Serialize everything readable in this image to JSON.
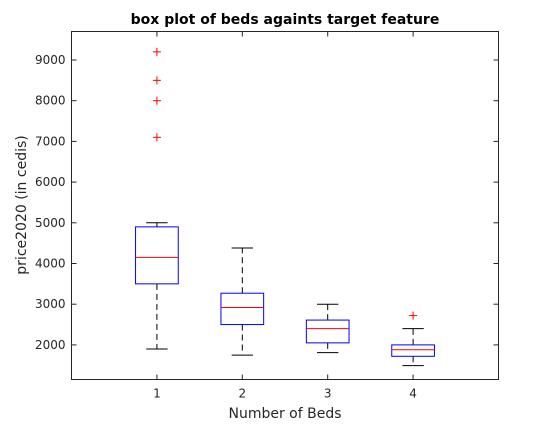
{
  "chart_data": {
    "type": "box",
    "title": "box plot of beds againts target feature",
    "xlabel": "Number of Beds",
    "ylabel": "price2020 (in cedis)",
    "categories": [
      "1",
      "2",
      "3",
      "4"
    ],
    "ylim": [
      1150,
      9700
    ],
    "yticks": [
      2000,
      3000,
      4000,
      5000,
      6000,
      7000,
      8000,
      9000
    ],
    "grid": false,
    "legend": "none",
    "boxes": [
      {
        "category": "1",
        "whisker_low": 1900,
        "q1": 3500,
        "median": 4150,
        "q3": 4900,
        "whisker_high": 5000,
        "outliers": [
          7100,
          8000,
          8500,
          9200
        ]
      },
      {
        "category": "2",
        "whisker_low": 1750,
        "q1": 2500,
        "median": 2920,
        "q3": 3270,
        "whisker_high": 4380,
        "outliers": []
      },
      {
        "category": "3",
        "whisker_low": 1810,
        "q1": 2050,
        "median": 2400,
        "q3": 2610,
        "whisker_high": 3000,
        "outliers": []
      },
      {
        "category": "4",
        "whisker_low": 1490,
        "q1": 1720,
        "median": 1880,
        "q3": 2000,
        "whisker_high": 2400,
        "outliers": [
          2720
        ]
      }
    ],
    "colors": {
      "box": "#0000ff",
      "median": "#ff0000",
      "whisker": "#000000",
      "outlier": "#ff0000",
      "axes": "#262626"
    }
  }
}
